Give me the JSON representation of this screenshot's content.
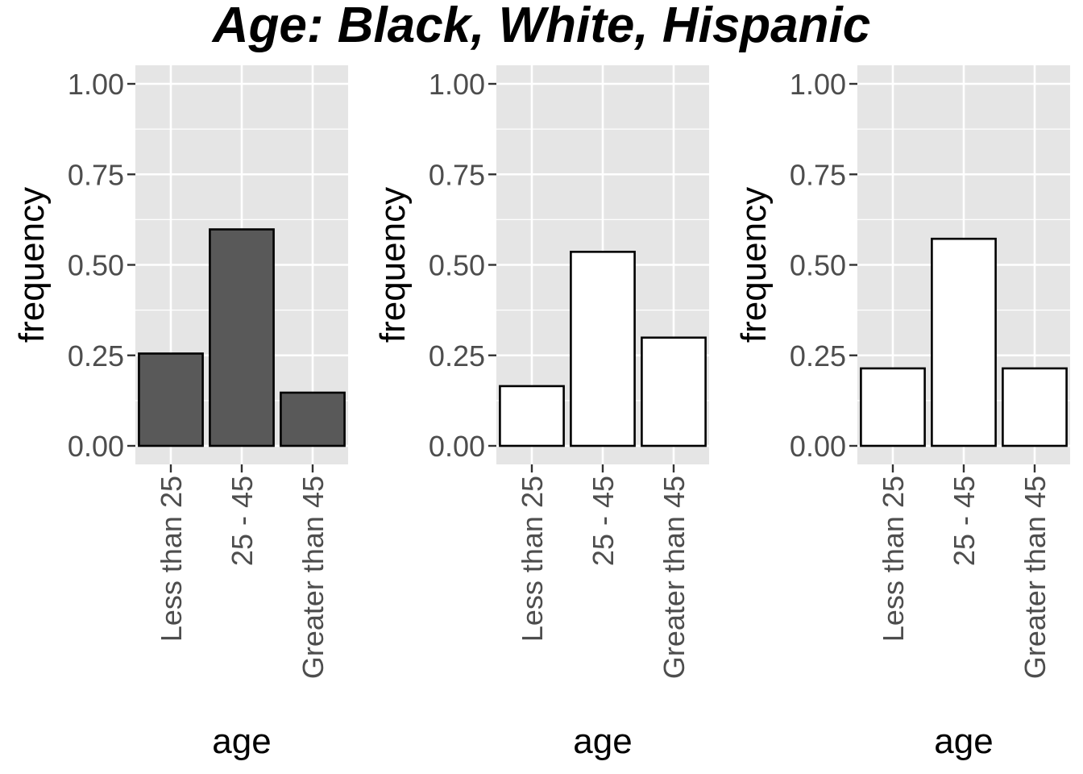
{
  "title": "Age: Black, White, Hispanic",
  "chart_data": [
    {
      "type": "bar",
      "categories": [
        "Less than 25",
        "25 - 45",
        "Greater than 45"
      ],
      "values": [
        0.255,
        0.598,
        0.147
      ],
      "xlabel": "age",
      "ylabel": "frequency",
      "ylim": [
        0,
        1
      ],
      "yticks": [
        "0.00",
        "0.25",
        "0.50",
        "0.75",
        "1.00"
      ],
      "fill_color": "#595959",
      "grid": true
    },
    {
      "type": "bar",
      "categories": [
        "Less than 25",
        "25 - 45",
        "Greater than 45"
      ],
      "values": [
        0.165,
        0.536,
        0.299
      ],
      "xlabel": "age",
      "ylabel": "frequency",
      "ylim": [
        0,
        1
      ],
      "yticks": [
        "0.00",
        "0.25",
        "0.50",
        "0.75",
        "1.00"
      ],
      "fill_color": "#ffffff",
      "grid": true
    },
    {
      "type": "bar",
      "categories": [
        "Less than 25",
        "25 - 45",
        "Greater than 45"
      ],
      "values": [
        0.214,
        0.572,
        0.214
      ],
      "xlabel": "age",
      "ylabel": "frequency",
      "ylim": [
        0,
        1
      ],
      "yticks": [
        "0.00",
        "0.25",
        "0.50",
        "0.75",
        "1.00"
      ],
      "fill_color": "#ffffff",
      "grid": true
    }
  ],
  "colors": {
    "panel_background": "#e5e5e5",
    "grid_line": "#ffffff",
    "bar_outline": "#000000",
    "tick_color": "#333333",
    "tick_label": "#4d4d4d"
  }
}
